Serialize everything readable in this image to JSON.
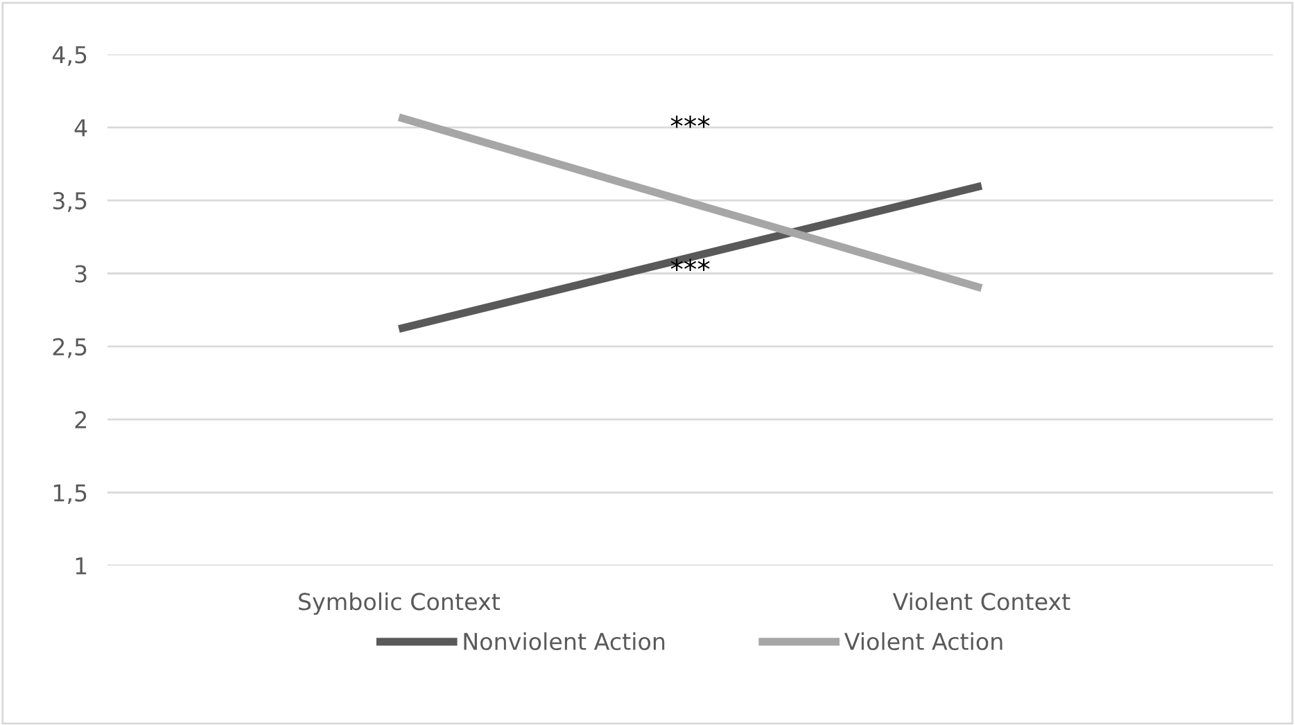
{
  "chart_data": {
    "type": "line",
    "categories": [
      "Symbolic Context",
      "Violent Context"
    ],
    "series": [
      {
        "name": "Nonviolent Action",
        "color": "#595959",
        "values": [
          2.62,
          3.6
        ]
      },
      {
        "name": "Violent Action",
        "color": "#a6a6a6",
        "values": [
          4.07,
          2.9
        ]
      }
    ],
    "ylim": [
      1,
      4.5
    ],
    "yticks": [
      1,
      {
        "value": 1.5,
        "label": "1,5"
      },
      2,
      {
        "value": 2.5,
        "label": "2,5"
      },
      3,
      {
        "value": 3.5,
        "label": "3,5"
      },
      4,
      {
        "value": 4.5,
        "label": "4,5"
      }
    ],
    "grid": "y",
    "legend": "bottom",
    "marker": "none",
    "line_style": "solid",
    "annotations": [
      "***",
      "***"
    ]
  }
}
